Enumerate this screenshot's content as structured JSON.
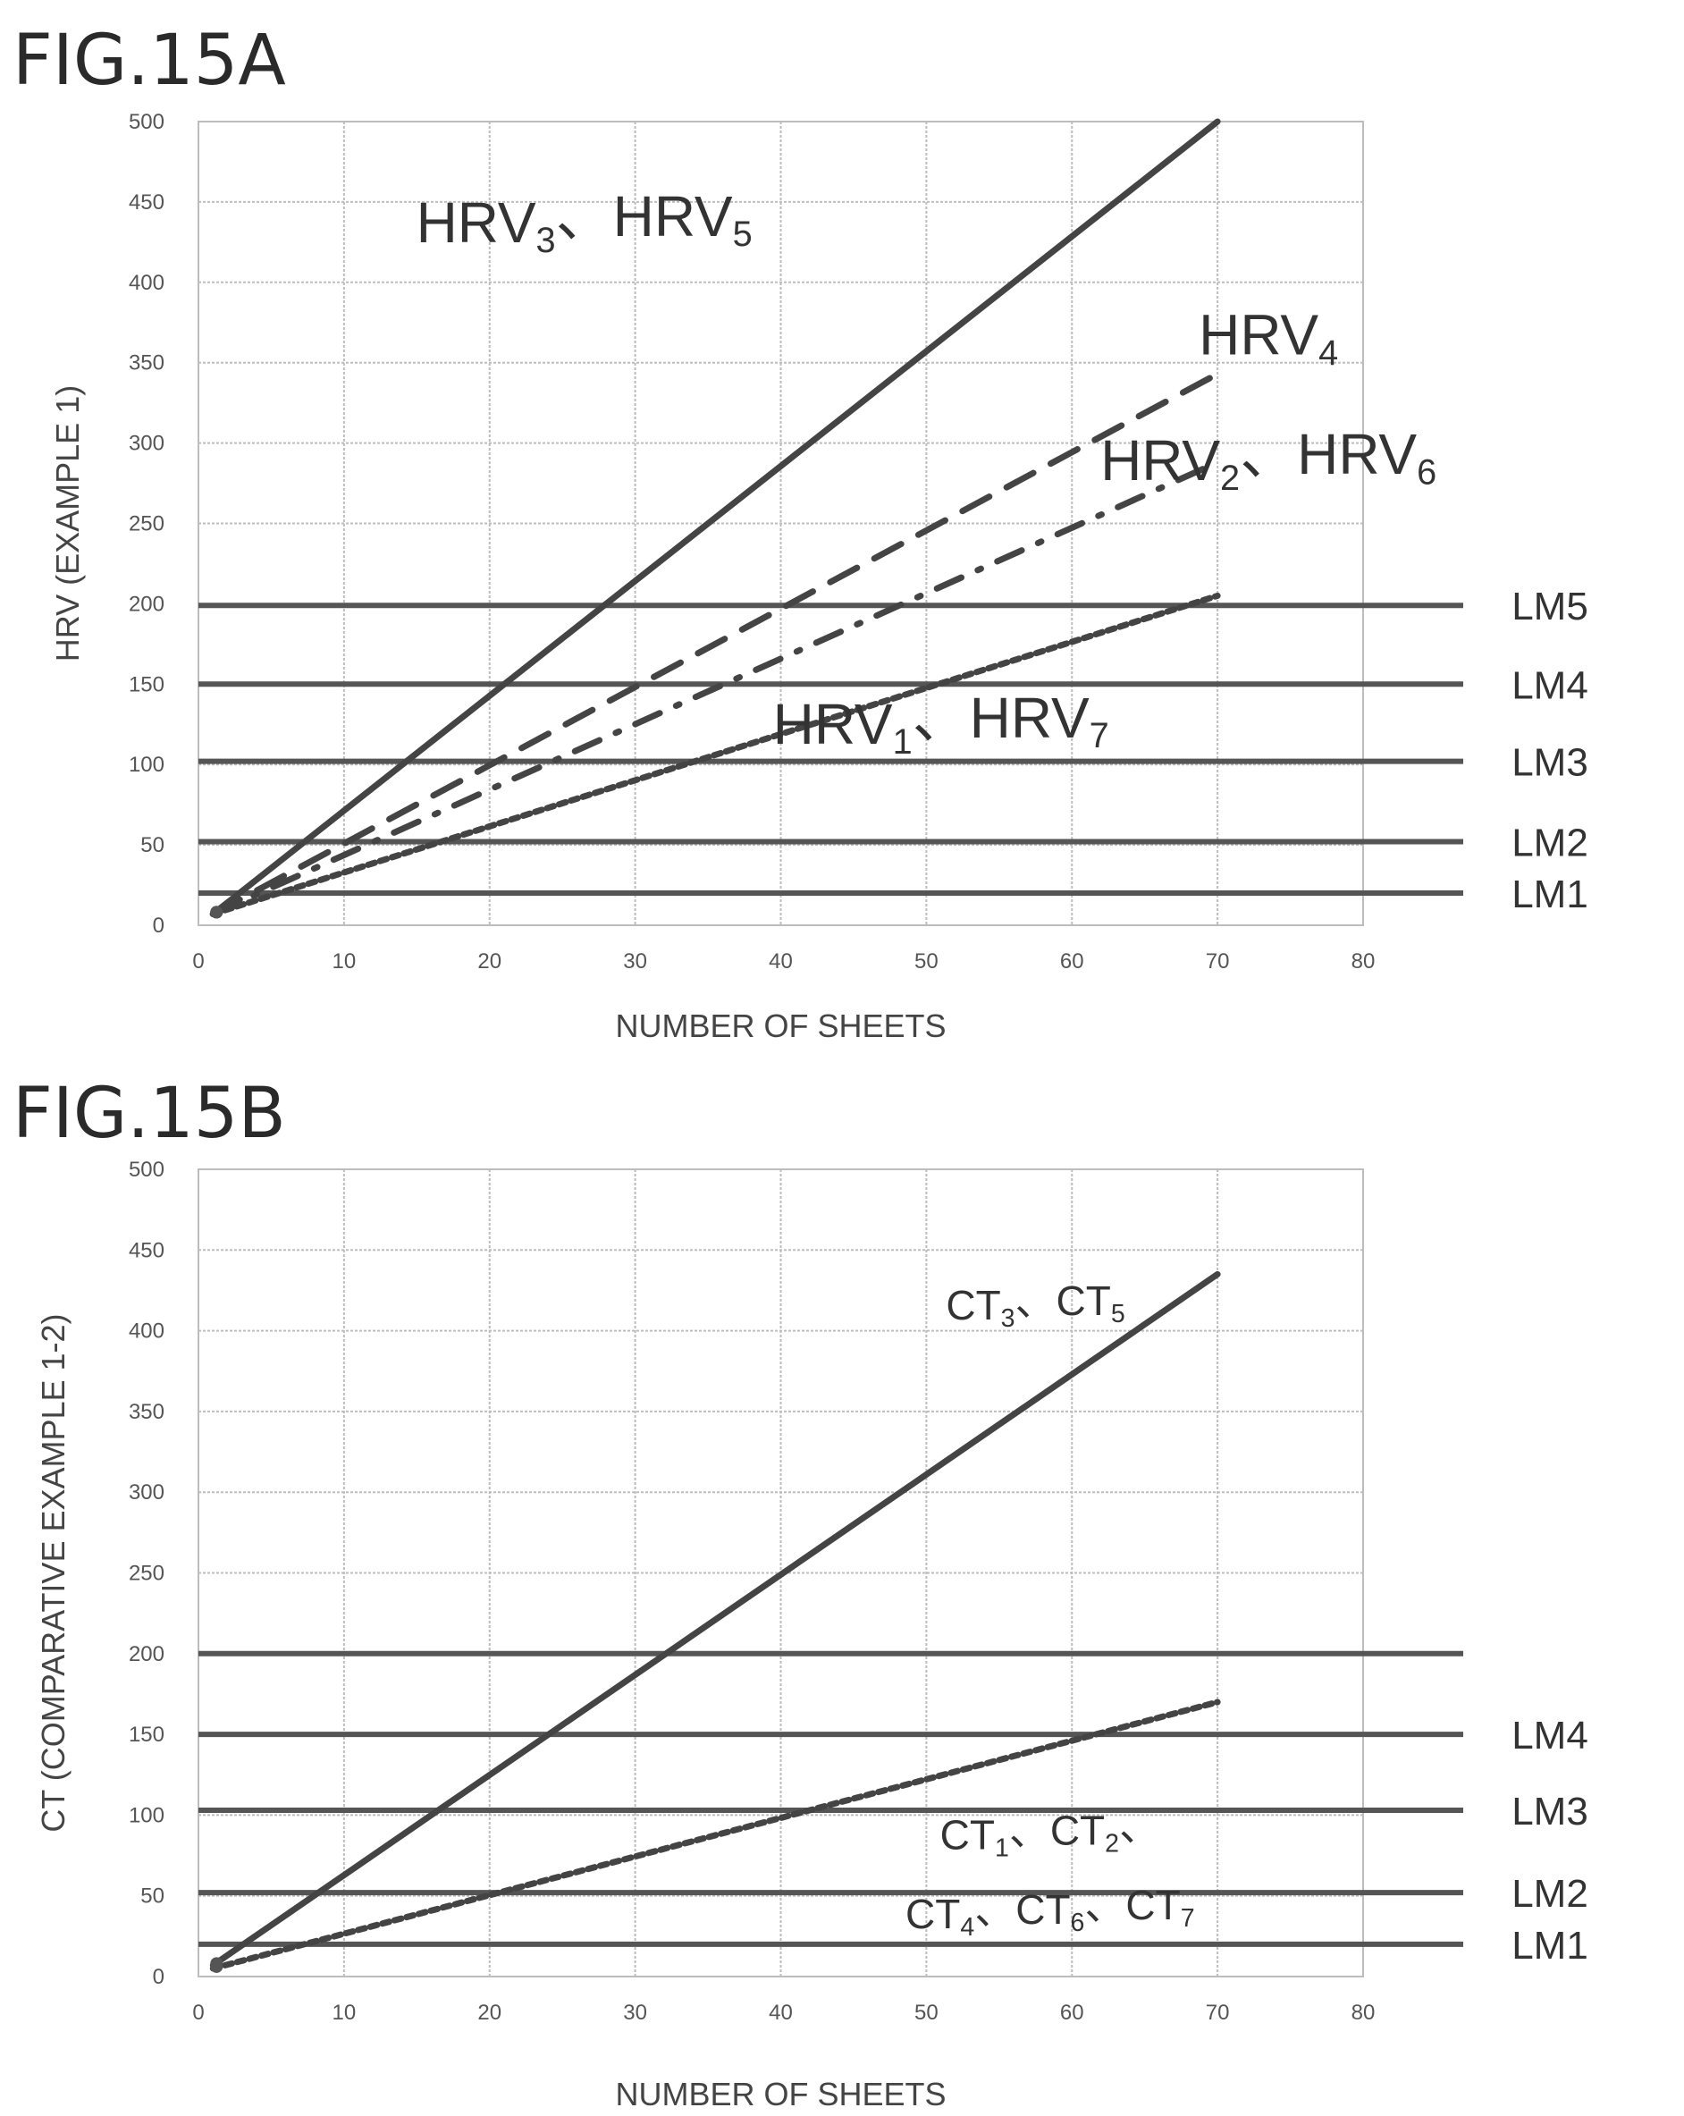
{
  "chart_data": [
    {
      "type": "line",
      "figure_label": "FIG.15A",
      "xlabel": "NUMBER OF SHEETS",
      "ylabel": "HRV (EXAMPLE 1)",
      "xlim": [
        0,
        80
      ],
      "ylim": [
        0,
        500
      ],
      "xticks": [
        "0",
        "10",
        "20",
        "30",
        "40",
        "50",
        "60",
        "70",
        "80"
      ],
      "yticks": [
        "0",
        "50",
        "100",
        "150",
        "200",
        "250",
        "300",
        "350",
        "400",
        "450",
        "500"
      ],
      "grid": true,
      "series": [
        {
          "key": "a_hrv35",
          "style": "solid",
          "x": [
            1,
            70
          ],
          "y": [
            7,
            500
          ]
        },
        {
          "key": "a_hrv4",
          "style": "long-dash",
          "x": [
            1,
            70
          ],
          "y": [
            7,
            343
          ]
        },
        {
          "key": "a_hrv26",
          "style": "dash-dot",
          "x": [
            1,
            70
          ],
          "y": [
            7,
            288
          ]
        },
        {
          "key": "a_hrv17",
          "style": "dotted",
          "x": [
            1,
            70
          ],
          "y": [
            7,
            205
          ]
        }
      ],
      "series_labels": [
        {
          "base1": "HRV",
          "sub1": "3",
          "sep": "、",
          "base2": "HRV",
          "sub2": "5",
          "pos": [
            26.5,
            425
          ],
          "size": "big"
        },
        {
          "base1": "HRV",
          "sub1": "4",
          "pos": [
            73.5,
            355
          ],
          "size": "big"
        },
        {
          "base1": "HRV",
          "sub1": "2",
          "sep": "、",
          "base2": "HRV",
          "sub2": "6",
          "pos": [
            73.5,
            277
          ],
          "size": "big"
        },
        {
          "base1": "HRV",
          "sub1": "1",
          "sep": "、",
          "base2": "HRV",
          "sub2": "7",
          "pos": [
            51,
            113
          ],
          "size": "big"
        }
      ],
      "limit_lines": [
        {
          "label": "LM5",
          "y": 199
        },
        {
          "label": "LM4",
          "y": 150
        },
        {
          "label": "LM3",
          "y": 102
        },
        {
          "label": "LM2",
          "y": 52
        },
        {
          "label": "LM1",
          "y": 20
        }
      ]
    },
    {
      "type": "line",
      "figure_label": "FIG.15B",
      "xlabel": "NUMBER OF SHEETS",
      "ylabel": "CT (COMPARATIVE EXAMPLE 1-2)",
      "xlim": [
        0,
        80
      ],
      "ylim": [
        0,
        500
      ],
      "xticks": [
        "0",
        "10",
        "20",
        "30",
        "40",
        "50",
        "60",
        "70",
        "80"
      ],
      "yticks": [
        "0",
        "50",
        "100",
        "150",
        "200",
        "250",
        "300",
        "350",
        "400",
        "450",
        "500"
      ],
      "grid": true,
      "series": [
        {
          "key": "b_ct35",
          "style": "solid",
          "x": [
            1,
            70
          ],
          "y": [
            7,
            435
          ]
        },
        {
          "key": "b_ct_rest",
          "style": "dotted",
          "x": [
            1,
            70
          ],
          "y": [
            5,
            170
          ]
        }
      ],
      "series_labels": [
        {
          "base1": "CT",
          "sub1": "3",
          "sep": "、",
          "base2": "CT",
          "sub2": "5",
          "pos": [
            57.5,
            407
          ],
          "size": "mid"
        },
        {
          "base1": "CT",
          "sub1": "1",
          "sep": "、",
          "base2": "CT",
          "sub2": "2",
          "tail": "、",
          "pos": [
            58.5,
            79
          ],
          "size": "mid"
        },
        {
          "base1": "CT",
          "sub1": "4",
          "sep": "、",
          "base2": "CT",
          "sub2": "6",
          "sep2": "、",
          "base3": "CT",
          "sub3": "7",
          "pos": [
            58.5,
            30
          ],
          "size": "mid"
        }
      ],
      "limit_lines": [
        {
          "label": "",
          "y": 200
        },
        {
          "label": "LM4",
          "y": 150
        },
        {
          "label": "LM3",
          "y": 103
        },
        {
          "label": "LM2",
          "y": 52
        },
        {
          "label": "LM1",
          "y": 20
        }
      ]
    }
  ]
}
